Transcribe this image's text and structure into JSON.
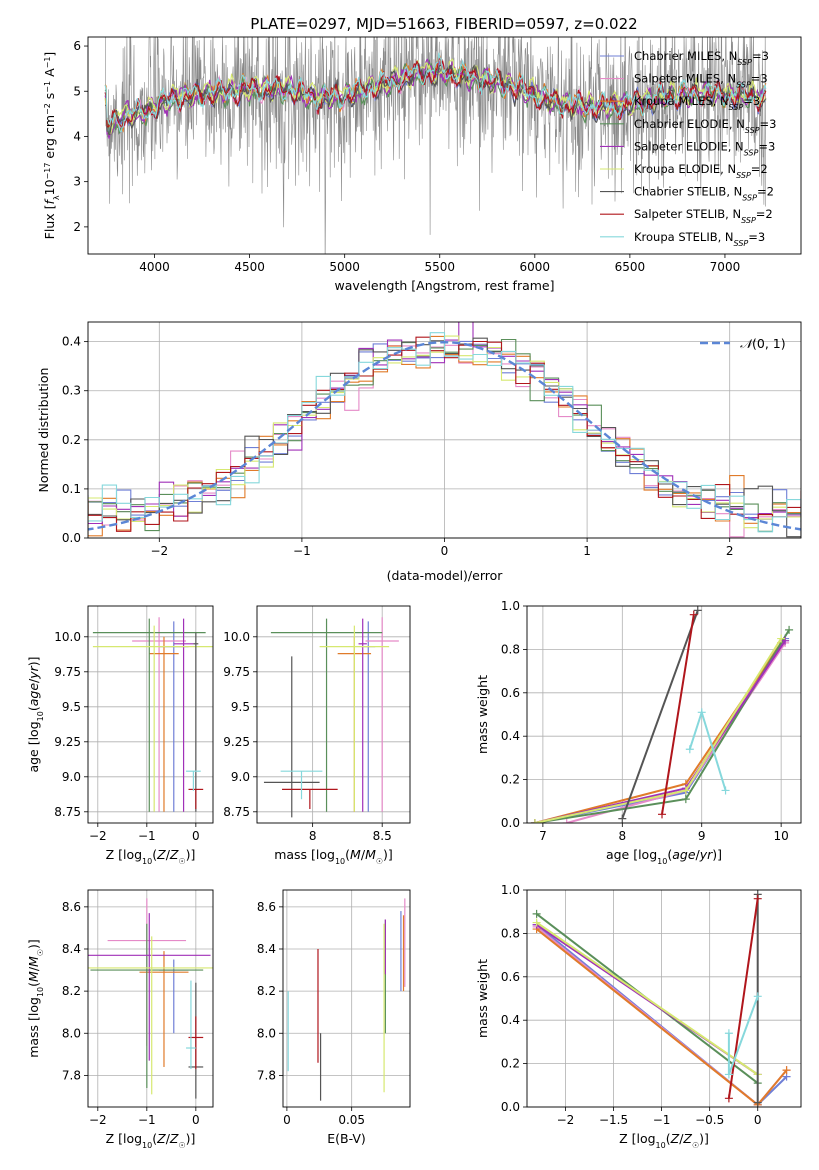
{
  "figure_title": "PLATE=0297, MJD=51663, FIBERID=0597, z=0.022",
  "colors": {
    "Chabrier MILES": "#6f7fd6",
    "Salpeter MILES": "#e58ac8",
    "Kroupa MILES": "#e07b2a",
    "Chabrier ELODIE": "#5a8f5a",
    "Salpeter ELODIE": "#a030b8",
    "Kroupa ELODIE": "#d6e870",
    "Chabrier STELIB": "#555555",
    "Salpeter STELIB": "#b0161c",
    "Kroupa STELIB": "#86d8dc",
    "data": "#8a8a8a",
    "normal": "#5b86d6"
  },
  "chart_data": [
    {
      "id": "spectrum",
      "type": "line",
      "xlabel": "wavelength [Angstrom, rest frame]",
      "ylabel": "Flux [f_λ 10^-17 erg cm^-2 s^-1 A^-1]",
      "xlim": [
        3650,
        7400
      ],
      "ylim": [
        1.4,
        6.2
      ],
      "xticks": [
        4000,
        4500,
        5000,
        5500,
        6000,
        6500,
        7000
      ],
      "yticks": [
        2,
        3,
        4,
        5,
        6
      ],
      "grid": false,
      "legend_position": "upper right",
      "continuum_knots": [
        [
          3750,
          4.2
        ],
        [
          3850,
          4.45
        ],
        [
          3950,
          4.55
        ],
        [
          4100,
          4.85
        ],
        [
          4300,
          4.95
        ],
        [
          4500,
          5.05
        ],
        [
          4700,
          5.05
        ],
        [
          4850,
          4.85
        ],
        [
          5000,
          4.9
        ],
        [
          5200,
          5.15
        ],
        [
          5400,
          5.4
        ],
        [
          5500,
          5.45
        ],
        [
          5650,
          5.3
        ],
        [
          5800,
          5.2
        ],
        [
          5950,
          5.0
        ],
        [
          6100,
          4.75
        ],
        [
          6300,
          4.65
        ],
        [
          6500,
          4.7
        ],
        [
          6700,
          4.9
        ],
        [
          6900,
          4.95
        ],
        [
          7100,
          4.9
        ],
        [
          7200,
          4.85
        ]
      ],
      "series": [
        {
          "name": "Chabrier MILES, N_SSP=3"
        },
        {
          "name": "Salpeter MILES, N_SSP=3"
        },
        {
          "name": "Kroupa MILES, N_SSP=3"
        },
        {
          "name": "Chabrier ELODIE, N_SSP=3"
        },
        {
          "name": "Salpeter ELODIE, N_SSP=3"
        },
        {
          "name": "Kroupa ELODIE, N_SSP=2"
        },
        {
          "name": "Chabrier STELIB, N_SSP=2"
        },
        {
          "name": "Salpeter STELIB, N_SSP=2"
        },
        {
          "name": "Kroupa STELIB, N_SSP=3"
        }
      ]
    },
    {
      "id": "residuals",
      "type": "bar",
      "xlabel": "(data-model)/error",
      "ylabel": "Normed distribution",
      "xlim": [
        -2.5,
        2.5
      ],
      "ylim": [
        0,
        0.44
      ],
      "xticks": [
        -2,
        -1,
        0,
        1,
        2
      ],
      "yticks": [
        0.0,
        0.1,
        0.2,
        0.3,
        0.4
      ],
      "grid": true,
      "bin_width": 0.1,
      "legend": "N(0,1)",
      "legend_position": "upper right"
    },
    {
      "id": "age_vs_Z",
      "type": "scatter",
      "xlabel": "Z [log10(Z/Z☉)]",
      "ylabel": "age  [log10(age/yr)]",
      "xlim": [
        -2.2,
        0.35
      ],
      "ylim": [
        8.67,
        10.22
      ],
      "xticks": [
        -2,
        -1,
        0
      ],
      "yticks": [
        8.75,
        9.0,
        9.25,
        9.5,
        9.75,
        10.0
      ],
      "grid": true,
      "errorbars": [
        {
          "s": "Chabrier MILES",
          "x": -0.45,
          "y": 9.93,
          "xerr": [
            0.3,
            0.3
          ],
          "yerr": [
            1.18,
            0.18
          ]
        },
        {
          "s": "Salpeter MILES",
          "x": -0.75,
          "y": 9.97,
          "xerr": [
            0.55,
            0.55
          ],
          "yerr": [
            1.22,
            0.17
          ]
        },
        {
          "s": "Kroupa MILES",
          "x": -0.65,
          "y": 9.88,
          "xerr": [
            0.3,
            0.3
          ],
          "yerr": [
            1.13,
            0.12
          ]
        },
        {
          "s": "Chabrier ELODIE",
          "x": -0.95,
          "y": 10.03,
          "xerr": [
            1.15,
            1.15
          ],
          "yerr": [
            1.28,
            0.1
          ]
        },
        {
          "s": "Salpeter ELODIE",
          "x": -0.25,
          "y": 9.95,
          "xerr": [
            0.2,
            0.2
          ],
          "yerr": [
            1.2,
            0.18
          ]
        },
        {
          "s": "Kroupa ELODIE",
          "x": -0.85,
          "y": 9.93,
          "xerr": [
            1.25,
            1.25
          ],
          "yerr": [
            1.18,
            0.15
          ]
        },
        {
          "s": "Chabrier STELIB",
          "x": 0.0,
          "y": 9.95,
          "xerr": [
            0.05,
            0.05
          ],
          "yerr": [
            1.2,
            0.08
          ]
        },
        {
          "s": "Salpeter STELIB",
          "x": 0.0,
          "y": 8.91,
          "xerr": [
            0.15,
            0.15
          ],
          "yerr": [
            0.14,
            0.0
          ]
        },
        {
          "s": "Kroupa STELIB",
          "x": -0.05,
          "y": 9.04,
          "xerr": [
            0.15,
            0.15
          ],
          "yerr": [
            0.14,
            0.0
          ]
        }
      ]
    },
    {
      "id": "age_vs_mass",
      "type": "scatter",
      "xlabel": "mass [log10(M/M☉)]",
      "ylabel": "",
      "xlim": [
        7.6,
        8.7
      ],
      "ylim": [
        8.67,
        10.22
      ],
      "xticks": [
        8.0,
        8.5
      ],
      "yticks": [
        8.75,
        9.0,
        9.25,
        9.5,
        9.75,
        10.0
      ],
      "grid": true,
      "errorbars": [
        {
          "s": "Chabrier MILES",
          "x": 8.4,
          "y": 9.93,
          "xerr": [
            0.05,
            0.05
          ],
          "yerr": [
            1.18,
            0.18
          ]
        },
        {
          "s": "Salpeter MILES",
          "x": 8.5,
          "y": 9.97,
          "xerr": [
            0.12,
            0.12
          ],
          "yerr": [
            1.22,
            0.17
          ]
        },
        {
          "s": "Kroupa MILES",
          "x": 8.3,
          "y": 9.88,
          "xerr": [
            0.12,
            0.12
          ],
          "yerr": [
            1.13,
            0.12
          ]
        },
        {
          "s": "Chabrier ELODIE",
          "x": 8.1,
          "y": 10.03,
          "xerr": [
            0.4,
            0.4
          ],
          "yerr": [
            1.28,
            0.1
          ]
        },
        {
          "s": "Salpeter ELODIE",
          "x": 8.36,
          "y": 9.95,
          "xerr": [
            0.03,
            0.03
          ],
          "yerr": [
            1.2,
            0.18
          ]
        },
        {
          "s": "Kroupa ELODIE",
          "x": 8.3,
          "y": 9.93,
          "xerr": [
            0.25,
            0.25
          ],
          "yerr": [
            1.18,
            0.15
          ]
        },
        {
          "s": "Chabrier STELIB",
          "x": 7.85,
          "y": 8.96,
          "xerr": [
            0.2,
            0.2
          ],
          "yerr": [
            0.25,
            0.9
          ]
        },
        {
          "s": "Salpeter STELIB",
          "x": 7.98,
          "y": 8.91,
          "xerr": [
            0.2,
            0.2
          ],
          "yerr": [
            0.14,
            0.0
          ]
        },
        {
          "s": "Kroupa STELIB",
          "x": 7.92,
          "y": 9.04,
          "xerr": [
            0.15,
            0.15
          ],
          "yerr": [
            0.2,
            0.0
          ]
        }
      ]
    },
    {
      "id": "massweight_vs_age",
      "type": "line",
      "xlabel": "age  [log10(age/yr)]",
      "ylabel": "mass weight",
      "xlim": [
        6.8,
        10.25
      ],
      "ylim": [
        0,
        1.0
      ],
      "xticks": [
        7,
        8,
        9,
        10
      ],
      "yticks": [
        0.0,
        0.2,
        0.4,
        0.6,
        0.8,
        1.0
      ],
      "grid": true,
      "series": [
        {
          "s": "Chabrier MILES",
          "points": [
            [
              6.9,
              0.0
            ],
            [
              8.8,
              0.14
            ],
            [
              10.05,
              0.85
            ]
          ]
        },
        {
          "s": "Salpeter MILES",
          "points": [
            [
              7.3,
              0.0
            ],
            [
              8.8,
              0.15
            ],
            [
              10.05,
              0.83
            ]
          ]
        },
        {
          "s": "Kroupa MILES",
          "points": [
            [
              6.9,
              0.0
            ],
            [
              8.8,
              0.18
            ],
            [
              10.0,
              0.83
            ]
          ]
        },
        {
          "s": "Chabrier ELODIE",
          "points": [
            [
              6.9,
              0.0
            ],
            [
              8.8,
              0.11
            ],
            [
              10.1,
              0.89
            ]
          ]
        },
        {
          "s": "Salpeter ELODIE",
          "points": [
            [
              6.9,
              0.0
            ],
            [
              8.8,
              0.16
            ],
            [
              10.05,
              0.84
            ]
          ]
        },
        {
          "s": "Kroupa ELODIE",
          "points": [
            [
              6.9,
              0.0
            ],
            [
              8.8,
              0.15
            ],
            [
              10.0,
              0.85
            ]
          ]
        },
        {
          "s": "Chabrier STELIB",
          "points": [
            [
              8.0,
              0.02
            ],
            [
              8.95,
              0.98
            ]
          ]
        },
        {
          "s": "Salpeter STELIB",
          "points": [
            [
              8.5,
              0.04
            ],
            [
              8.9,
              0.96
            ]
          ]
        },
        {
          "s": "Kroupa STELIB",
          "points": [
            [
              8.85,
              0.34
            ],
            [
              9.0,
              0.51
            ],
            [
              9.3,
              0.15
            ]
          ]
        }
      ]
    },
    {
      "id": "mass_vs_Z",
      "type": "scatter",
      "xlabel": "Z [log10(Z/Z☉)]",
      "ylabel": "mass [log10(M/M☉)]",
      "xlim": [
        -2.2,
        0.35
      ],
      "ylim": [
        7.65,
        8.68
      ],
      "xticks": [
        -2,
        -1,
        0
      ],
      "yticks": [
        7.8,
        8.0,
        8.2,
        8.4,
        8.6
      ],
      "grid": true,
      "errorbars": [
        {
          "s": "Chabrier MILES",
          "x": -0.45,
          "y": 8.3,
          "xerr": [
            0.3,
            0.3
          ],
          "yerr": [
            0.3,
            0.05
          ]
        },
        {
          "s": "Salpeter MILES",
          "x": -1.0,
          "y": 8.44,
          "xerr": [
            0.8,
            0.8
          ],
          "yerr": [
            0.5,
            0.2
          ]
        },
        {
          "s": "Kroupa MILES",
          "x": -0.65,
          "y": 8.29,
          "xerr": [
            0.5,
            0.5
          ],
          "yerr": [
            0.45,
            0.1
          ]
        },
        {
          "s": "Chabrier ELODIE",
          "x": -1.0,
          "y": 8.3,
          "xerr": [
            1.15,
            1.15
          ],
          "yerr": [
            0.56,
            0.22
          ]
        },
        {
          "s": "Salpeter ELODIE",
          "x": -0.95,
          "y": 8.37,
          "xerr": [
            1.25,
            1.25
          ],
          "yerr": [
            0.5,
            0.2
          ]
        },
        {
          "s": "Kroupa ELODIE",
          "x": -0.9,
          "y": 8.31,
          "xerr": [
            1.3,
            1.3
          ],
          "yerr": [
            0.6,
            0.15
          ]
        },
        {
          "s": "Chabrier STELIB",
          "x": 0.0,
          "y": 7.84,
          "xerr": [
            0.15,
            0.15
          ],
          "yerr": [
            0.15,
            0.4
          ]
        },
        {
          "s": "Salpeter STELIB",
          "x": 0.0,
          "y": 7.98,
          "xerr": [
            0.15,
            0.15
          ],
          "yerr": [
            0.15,
            0.1
          ]
        },
        {
          "s": "Kroupa STELIB",
          "x": -0.1,
          "y": 7.93,
          "xerr": [
            0.1,
            0.1
          ],
          "yerr": [
            0.1,
            0.32
          ]
        }
      ]
    },
    {
      "id": "mass_vs_EBV",
      "type": "scatter",
      "xlabel": "E(B-V)",
      "ylabel": "",
      "xlim": [
        -0.003,
        0.095
      ],
      "ylim": [
        7.65,
        8.68
      ],
      "xticks": [
        0.0,
        0.05
      ],
      "yticks": [
        7.8,
        8.0,
        8.2,
        8.4,
        8.6
      ],
      "grid": true,
      "vlines": [
        {
          "s": "Chabrier MILES",
          "x": 0.088,
          "y0": 8.2,
          "y1": 8.58
        },
        {
          "s": "Salpeter MILES",
          "x": 0.091,
          "y0": 8.22,
          "y1": 8.64
        },
        {
          "s": "Kroupa MILES",
          "x": 0.09,
          "y0": 8.2,
          "y1": 8.56
        },
        {
          "s": "Chabrier ELODIE",
          "x": 0.076,
          "y0": 8.0,
          "y1": 8.54
        },
        {
          "s": "Salpeter ELODIE",
          "x": 0.076,
          "y0": 8.28,
          "y1": 8.54
        },
        {
          "s": "Kroupa ELODIE",
          "x": 0.075,
          "y0": 7.72,
          "y1": 8.52
        },
        {
          "s": "Chabrier STELIB",
          "x": 0.026,
          "y0": 7.68,
          "y1": 8.0
        },
        {
          "s": "Salpeter STELIB",
          "x": 0.024,
          "y0": 7.86,
          "y1": 8.4
        },
        {
          "s": "Kroupa STELIB",
          "x": 0.001,
          "y0": 7.82,
          "y1": 8.2
        }
      ]
    },
    {
      "id": "massweight_vs_Z",
      "type": "line",
      "xlabel": "Z [log10(Z/Z☉)]",
      "ylabel": "mass weight",
      "xlim": [
        -2.4,
        0.45
      ],
      "ylim": [
        0,
        1.0
      ],
      "xticks": [
        -2.0,
        -1.5,
        -1.0,
        -0.5,
        0.0
      ],
      "yticks": [
        0.0,
        0.2,
        0.4,
        0.6,
        0.8,
        1.0
      ],
      "grid": true,
      "series": [
        {
          "s": "Chabrier MILES",
          "points": [
            [
              -2.3,
              0.84
            ],
            [
              0.0,
              0.01
            ],
            [
              0.3,
              0.14
            ]
          ]
        },
        {
          "s": "Salpeter MILES",
          "points": [
            [
              -2.3,
              0.83
            ],
            [
              0.0,
              0.01
            ],
            [
              0.3,
              0.17
            ]
          ]
        },
        {
          "s": "Kroupa MILES",
          "points": [
            [
              -2.3,
              0.82
            ],
            [
              0.0,
              0.01
            ],
            [
              0.3,
              0.17
            ]
          ]
        },
        {
          "s": "Chabrier ELODIE",
          "points": [
            [
              -2.3,
              0.89
            ],
            [
              0.0,
              0.11
            ]
          ]
        },
        {
          "s": "Salpeter ELODIE",
          "points": [
            [
              -2.3,
              0.84
            ],
            [
              0.0,
              0.15
            ]
          ]
        },
        {
          "s": "Kroupa ELODIE",
          "points": [
            [
              -2.3,
              0.85
            ],
            [
              0.0,
              0.15
            ]
          ]
        },
        {
          "s": "Chabrier STELIB",
          "points": [
            [
              0.0,
              0.98
            ],
            [
              0.0,
              0.02
            ]
          ]
        },
        {
          "s": "Salpeter STELIB",
          "points": [
            [
              -0.3,
              0.04
            ],
            [
              0.0,
              0.96
            ]
          ]
        },
        {
          "s": "Kroupa STELIB",
          "points": [
            [
              -0.3,
              0.34
            ],
            [
              -0.3,
              0.15
            ],
            [
              0.0,
              0.51
            ]
          ]
        }
      ]
    }
  ]
}
